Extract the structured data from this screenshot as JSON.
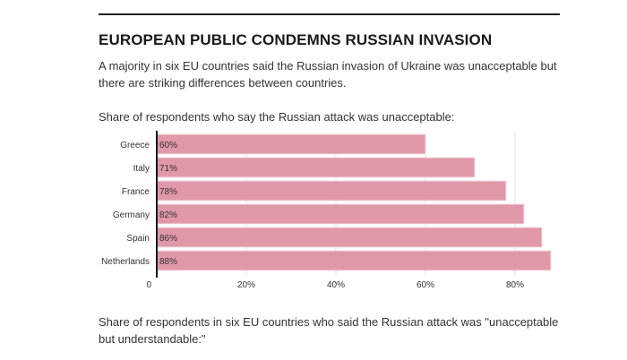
{
  "header": {
    "title": "EUROPEAN PUBLIC CONDEMNS RUSSIAN INVASION",
    "subtitle": "A majority in six EU countries said the Russian invasion of Ukraine was unacceptable but there are striking differences between countries."
  },
  "chart_data": {
    "type": "bar",
    "orientation": "horizontal",
    "title": "Share of respondents who say the Russian attack was unacceptable:",
    "categories": [
      "Greece",
      "Italy",
      "France",
      "Germany",
      "Spain",
      "Netherlands"
    ],
    "values": [
      60,
      71,
      78,
      82,
      86,
      88
    ],
    "value_labels": [
      "60%",
      "71%",
      "78%",
      "82%",
      "86%",
      "88%"
    ],
    "xlim": [
      0,
      88
    ],
    "xticks": [
      0,
      20,
      40,
      60,
      80
    ],
    "xtick_labels": [
      "0",
      "20%",
      "40%",
      "60%",
      "80%"
    ],
    "xlabel": "",
    "ylabel": "",
    "grid": true,
    "bar_color": "#e098a8",
    "bar_edge_color": "#f5dde3"
  },
  "footer": {
    "note": "Share of respondents in six EU countries who said the Russian attack was \"unacceptable but understandable:\""
  }
}
